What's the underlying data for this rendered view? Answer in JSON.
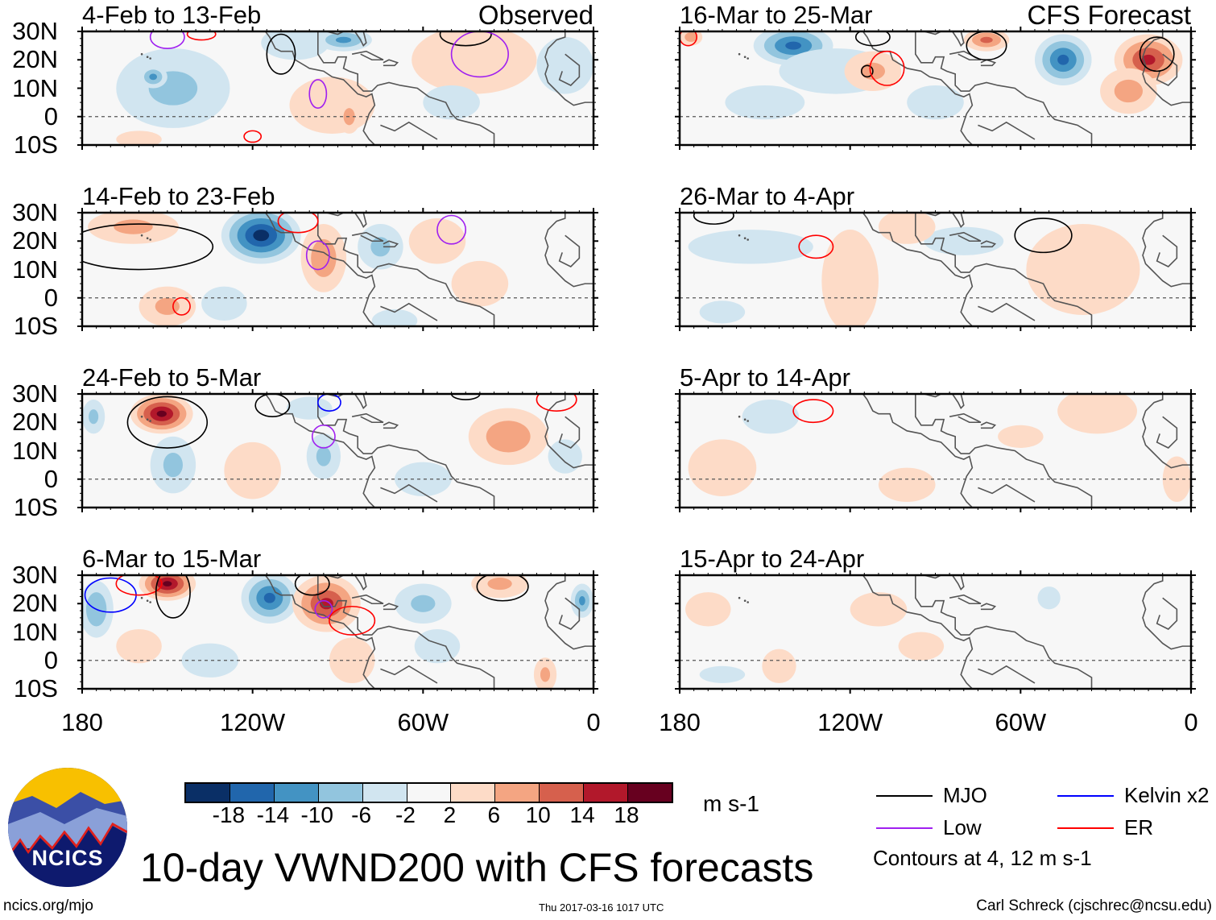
{
  "header": {
    "observed_label": "Observed",
    "forecast_label": "CFS Forecast"
  },
  "title": "10-day VWND200 with CFS forecasts",
  "footer": {
    "url": "ncics.org/mjo",
    "timestamp": "Thu 2017-03-16 1017 UTC",
    "author": "Carl Schreck (cjschrec@ncsu.edu)"
  },
  "logo_text": "NCICS",
  "colorbar": {
    "units": "m s-1",
    "ticks": [
      "-18",
      "-14",
      "-10",
      "-6",
      "-2",
      "2",
      "6",
      "10",
      "14",
      "18"
    ],
    "colors": [
      "#0a2f66",
      "#2166ac",
      "#4393c3",
      "#92c5de",
      "#d1e5f0",
      "#f7f7f7",
      "#fddbc7",
      "#f4a582",
      "#d6604d",
      "#b2182b",
      "#67001f"
    ]
  },
  "legend": {
    "items": [
      {
        "label": "MJO",
        "color": "#000000"
      },
      {
        "label": "Kelvin x2",
        "color": "#0000ff"
      },
      {
        "label": "Low",
        "color": "#a020f0"
      },
      {
        "label": "ER",
        "color": "#ff0000"
      }
    ],
    "note": "Contours at 4, 12 m s-1"
  },
  "axes": {
    "lat_labels": [
      "30N",
      "20N",
      "10N",
      "0",
      "10S"
    ],
    "lon_labels": [
      "180",
      "120W",
      "60W",
      "0"
    ]
  },
  "chart_data": {
    "type": "heatmap",
    "variable": "200-hPa meridional wind anomaly (m s-1)",
    "lon_range": [
      -180,
      0
    ],
    "lat_range": [
      -10,
      30
    ],
    "panels": [
      {
        "title": "4-Feb to 13-Feb",
        "kind": "observed",
        "anomalies": [
          [
            -148,
            10,
            20,
            14,
            -7
          ],
          [
            -155,
            14,
            5,
            4,
            -11
          ],
          [
            -105,
            26,
            12,
            6,
            -6
          ],
          [
            -88,
            27,
            10,
            4,
            -11
          ],
          [
            -92,
            4,
            15,
            10,
            5
          ],
          [
            -86,
            0,
            4,
            6,
            8
          ],
          [
            -42,
            20,
            22,
            12,
            5
          ],
          [
            -10,
            18,
            10,
            10,
            -5
          ],
          [
            -160,
            -8,
            8,
            3,
            4
          ],
          [
            -50,
            5,
            10,
            6,
            -3
          ]
        ],
        "contours": [
          [
            -150,
            28,
            6,
            4,
            "Low"
          ],
          [
            -110,
            22,
            5,
            7,
            "MJO"
          ],
          [
            -97,
            8,
            3,
            5,
            "Low"
          ],
          [
            -120,
            -7,
            3,
            2,
            "ER"
          ],
          [
            -45,
            29,
            9,
            4,
            "MJO"
          ],
          [
            -40,
            22,
            10,
            8,
            "Low"
          ],
          [
            -138,
            29,
            5,
            2,
            "ER"
          ]
        ]
      },
      {
        "title": "14-Feb to 23-Feb",
        "kind": "observed",
        "anomalies": [
          [
            -162,
            25,
            16,
            6,
            7
          ],
          [
            -117,
            22,
            14,
            10,
            -20
          ],
          [
            -95,
            14,
            8,
            12,
            9
          ],
          [
            -150,
            -3,
            10,
            7,
            7
          ],
          [
            -75,
            18,
            8,
            8,
            -7
          ],
          [
            -55,
            20,
            10,
            8,
            5
          ],
          [
            -70,
            -8,
            8,
            4,
            -6
          ],
          [
            -130,
            -2,
            8,
            6,
            -4
          ],
          [
            -40,
            5,
            10,
            8,
            4
          ]
        ],
        "contours": [
          [
            -160,
            18,
            26,
            8,
            "MJO"
          ],
          [
            -104,
            27,
            7,
            4,
            "ER"
          ],
          [
            -97,
            15,
            4,
            5,
            "Low"
          ],
          [
            -145,
            -3,
            3,
            3,
            "ER"
          ],
          [
            -50,
            24,
            5,
            5,
            "Low"
          ]
        ]
      },
      {
        "title": "24-Feb to 5-Mar",
        "kind": "observed",
        "anomalies": [
          [
            -152,
            23,
            11,
            7,
            19
          ],
          [
            -176,
            22,
            4,
            6,
            -7
          ],
          [
            -148,
            5,
            8,
            10,
            -7
          ],
          [
            -120,
            3,
            10,
            10,
            4
          ],
          [
            -95,
            8,
            6,
            8,
            -7
          ],
          [
            -30,
            15,
            14,
            10,
            9
          ],
          [
            -100,
            25,
            8,
            4,
            -5
          ],
          [
            -60,
            0,
            10,
            6,
            -3
          ],
          [
            -10,
            8,
            6,
            6,
            -3
          ]
        ],
        "contours": [
          [
            -150,
            20,
            14,
            9,
            "MJO"
          ],
          [
            -113,
            26,
            6,
            4,
            "MJO"
          ],
          [
            -93,
            27,
            4,
            3,
            "Kelvin x2"
          ],
          [
            -95,
            15,
            4,
            4,
            "Low"
          ],
          [
            -13,
            28,
            7,
            4,
            "ER"
          ],
          [
            -45,
            30,
            5,
            2,
            "MJO"
          ]
        ]
      },
      {
        "title": "6-Mar to 15-Mar",
        "kind": "observed",
        "anomalies": [
          [
            -150,
            27,
            10,
            6,
            19
          ],
          [
            -175,
            18,
            6,
            10,
            -10
          ],
          [
            -114,
            22,
            10,
            9,
            -15
          ],
          [
            -94,
            20,
            12,
            10,
            15
          ],
          [
            -60,
            20,
            10,
            7,
            -7
          ],
          [
            -33,
            27,
            10,
            5,
            7
          ],
          [
            -4,
            21,
            4,
            6,
            -11
          ],
          [
            -135,
            0,
            10,
            6,
            -6
          ],
          [
            -17,
            -5,
            4,
            6,
            7
          ],
          [
            -55,
            5,
            8,
            6,
            -6
          ],
          [
            -85,
            0,
            8,
            8,
            4
          ],
          [
            -160,
            5,
            8,
            6,
            3
          ]
        ],
        "contours": [
          [
            -170,
            23,
            9,
            6,
            "Kelvin x2"
          ],
          [
            -160,
            27,
            8,
            4,
            "ER"
          ],
          [
            -148,
            24,
            6,
            9,
            "MJO"
          ],
          [
            -99,
            27,
            6,
            4,
            "MJO"
          ],
          [
            -95,
            18,
            3,
            3,
            "Low"
          ],
          [
            -85,
            14,
            8,
            5,
            "ER"
          ],
          [
            -32,
            26,
            9,
            5,
            "MJO"
          ]
        ]
      },
      {
        "title": "16-Mar to 25-Mar",
        "kind": "forecast",
        "anomalies": [
          [
            -140,
            25,
            14,
            7,
            -15
          ],
          [
            -125,
            16,
            20,
            8,
            -6
          ],
          [
            -176,
            28,
            4,
            3,
            9
          ],
          [
            -112,
            16,
            10,
            7,
            7
          ],
          [
            -72,
            27,
            8,
            4,
            11
          ],
          [
            -45,
            20,
            10,
            9,
            -15
          ],
          [
            -15,
            20,
            12,
            9,
            15
          ],
          [
            -22,
            9,
            10,
            8,
            8
          ],
          [
            -150,
            5,
            14,
            6,
            -3
          ],
          [
            -90,
            5,
            10,
            6,
            -3
          ]
        ],
        "contours": [
          [
            -177,
            28,
            3,
            3,
            "ER"
          ],
          [
            -112,
            28,
            6,
            3,
            "MJO"
          ],
          [
            -114,
            16,
            2,
            2,
            "MJO"
          ],
          [
            -107,
            17,
            6,
            6,
            "ER"
          ],
          [
            -72,
            25,
            7,
            5,
            "MJO"
          ],
          [
            -12,
            22,
            6,
            6,
            "MJO"
          ]
        ]
      },
      {
        "title": "26-Mar to 4-Apr",
        "kind": "forecast",
        "anomalies": [
          [
            -155,
            18,
            22,
            6,
            -4
          ],
          [
            -80,
            20,
            14,
            5,
            -4
          ],
          [
            -120,
            6,
            10,
            18,
            4
          ],
          [
            -38,
            10,
            20,
            16,
            4
          ],
          [
            -100,
            25,
            10,
            6,
            4
          ],
          [
            -165,
            -5,
            8,
            4,
            -3
          ]
        ],
        "contours": [
          [
            -168,
            29,
            7,
            3,
            "MJO"
          ],
          [
            -132,
            18,
            6,
            4,
            "ER"
          ],
          [
            -52,
            22,
            10,
            6,
            "MJO"
          ]
        ]
      },
      {
        "title": "5-Apr to 14-Apr",
        "kind": "forecast",
        "anomalies": [
          [
            -165,
            4,
            12,
            10,
            3
          ],
          [
            -33,
            24,
            14,
            8,
            4
          ],
          [
            -148,
            22,
            10,
            6,
            -3
          ],
          [
            -100,
            -2,
            10,
            6,
            3
          ],
          [
            -5,
            0,
            5,
            8,
            3
          ],
          [
            -60,
            15,
            8,
            4,
            3
          ]
        ],
        "contours": [
          [
            -133,
            24,
            7,
            4,
            "ER"
          ]
        ]
      },
      {
        "title": "15-Apr to 24-Apr",
        "kind": "forecast",
        "anomalies": [
          [
            -170,
            18,
            8,
            6,
            3
          ],
          [
            -110,
            18,
            10,
            6,
            3
          ],
          [
            -95,
            5,
            8,
            5,
            3
          ],
          [
            -50,
            22,
            4,
            4,
            -3
          ],
          [
            -145,
            -2,
            6,
            6,
            3
          ],
          [
            -165,
            -5,
            8,
            3,
            -3
          ]
        ],
        "contours": []
      }
    ]
  }
}
